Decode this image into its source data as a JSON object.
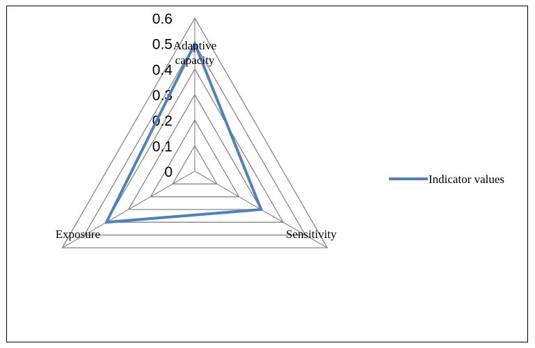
{
  "chart_data": {
    "type": "radar",
    "title": "",
    "axes": [
      "Adaptive capacity",
      "Sensitivity",
      "Exposure"
    ],
    "axis_label_lines": [
      [
        "Adaptive",
        "capacity"
      ],
      [
        "Sensitivity"
      ],
      [
        "Exposure"
      ]
    ],
    "ticks": [
      "0",
      "0.1",
      "0.2",
      "0.3",
      "0.4",
      "0.5",
      "0.6"
    ],
    "rlim": [
      0,
      0.6
    ],
    "grid": true,
    "legend_position": "right",
    "series": [
      {
        "name": "Indicator values",
        "values": [
          0.5,
          0.3,
          0.4
        ],
        "color": "#4f81bd"
      }
    ],
    "grid_color": "#868686"
  }
}
